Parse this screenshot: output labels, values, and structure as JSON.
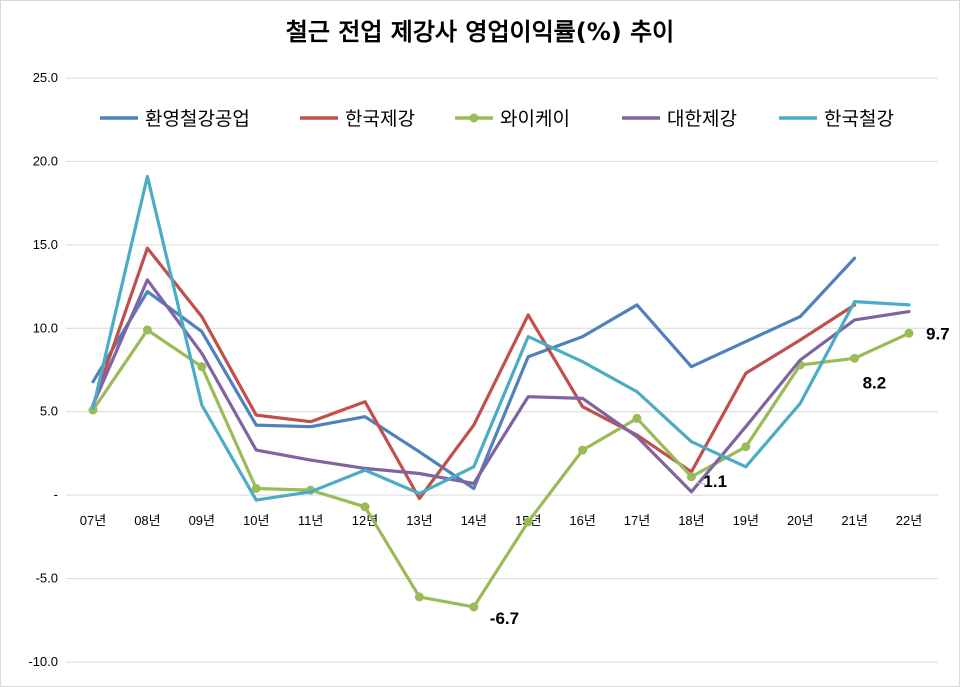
{
  "chart_data": {
    "type": "line",
    "title": "철근 전업 제강사 영업이익률(%) 추이",
    "categories": [
      "07년",
      "08년",
      "09년",
      "10년",
      "11년",
      "12년",
      "13년",
      "14년",
      "15년",
      "16년",
      "17년",
      "18년",
      "19년",
      "20년",
      "21년",
      "22년"
    ],
    "ylim": [
      -10,
      25
    ],
    "yticks": [
      {
        "value": 25,
        "label": "25.0"
      },
      {
        "value": 20,
        "label": "20.0"
      },
      {
        "value": 15,
        "label": "15.0"
      },
      {
        "value": 10,
        "label": "10.0"
      },
      {
        "value": 5,
        "label": "5.0"
      },
      {
        "value": 0,
        "label": "-"
      },
      {
        "value": -5,
        "label": "-5.0"
      },
      {
        "value": -10,
        "label": "-10.0"
      }
    ],
    "grid": true,
    "legend_position": "top",
    "series": [
      {
        "name": "환영철강공업",
        "color": "#4F81BD",
        "marker": false,
        "values": [
          6.8,
          12.2,
          9.8,
          4.2,
          4.1,
          4.7,
          2.6,
          0.4,
          8.3,
          9.5,
          11.4,
          7.7,
          9.2,
          10.7,
          14.2,
          null
        ]
      },
      {
        "name": "한국제강",
        "color": "#C0504D",
        "marker": false,
        "values": [
          5.4,
          14.8,
          10.7,
          4.8,
          4.4,
          5.6,
          -0.2,
          4.2,
          10.8,
          5.3,
          3.6,
          1.4,
          7.3,
          9.3,
          11.4,
          null
        ]
      },
      {
        "name": "와이케이",
        "color": "#9BBB59",
        "marker": true,
        "values": [
          5.1,
          9.9,
          7.7,
          0.4,
          0.3,
          -0.7,
          -6.1,
          -6.7,
          -1.6,
          2.7,
          4.6,
          1.1,
          2.9,
          7.8,
          8.2,
          9.7
        ]
      },
      {
        "name": "대한제강",
        "color": "#8064A2",
        "marker": false,
        "values": [
          5.4,
          12.9,
          8.5,
          2.7,
          2.1,
          1.6,
          1.3,
          0.7,
          5.9,
          5.8,
          3.5,
          0.2,
          4.1,
          8.1,
          10.5,
          11.0
        ]
      },
      {
        "name": "한국철강",
        "color": "#4BACC6",
        "marker": false,
        "values": [
          5.2,
          19.1,
          5.4,
          -0.3,
          0.2,
          1.5,
          0.1,
          1.7,
          9.5,
          8.0,
          6.2,
          3.2,
          1.7,
          5.5,
          11.6,
          11.4
        ]
      }
    ],
    "annotations": [
      {
        "text": "1.1",
        "series": "와이케이",
        "index": 11
      },
      {
        "text": "-6.7",
        "series": "와이케이",
        "index": 7
      },
      {
        "text": "8.2",
        "series": "와이케이",
        "index": 14
      },
      {
        "text": "9.7",
        "series": "와이케이",
        "index": 15
      }
    ]
  }
}
